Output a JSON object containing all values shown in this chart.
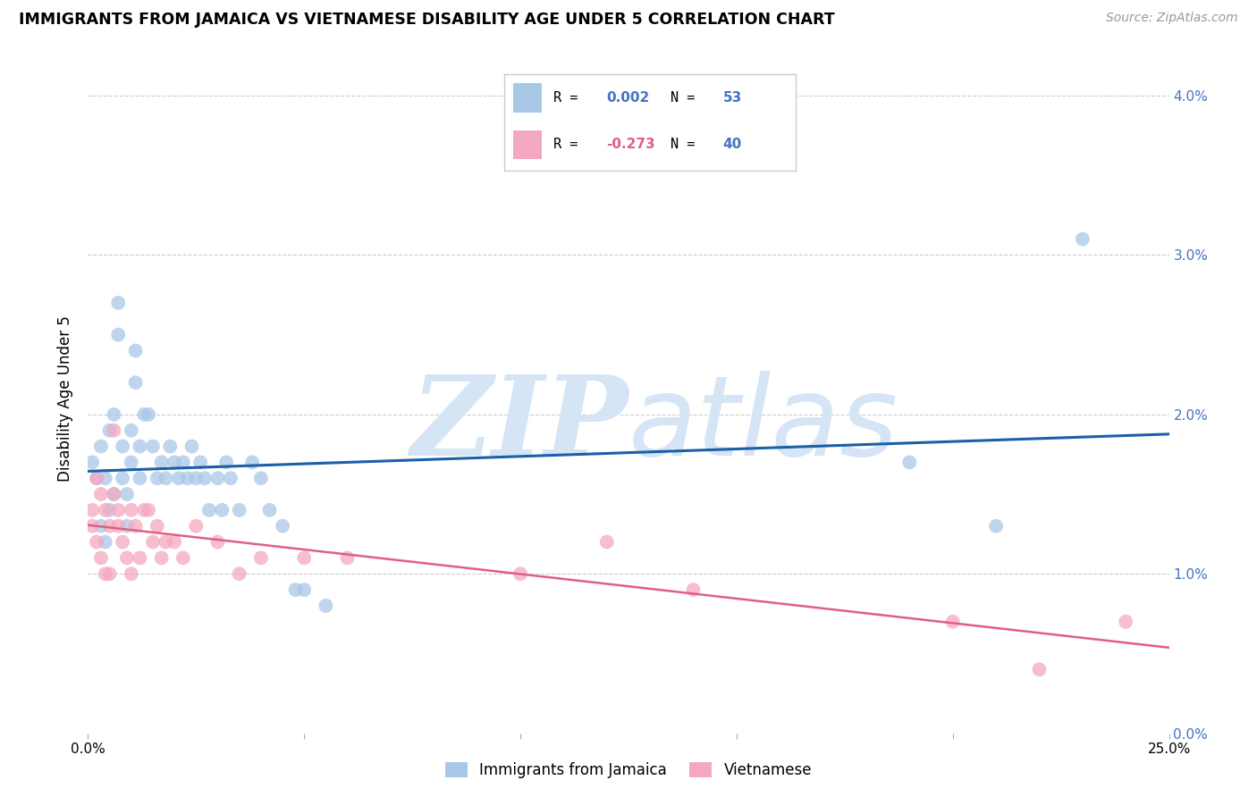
{
  "title": "IMMIGRANTS FROM JAMAICA VS VIETNAMESE DISABILITY AGE UNDER 5 CORRELATION CHART",
  "source": "Source: ZipAtlas.com",
  "ylabel": "Disability Age Under 5",
  "legend_jamaica": "Immigrants from Jamaica",
  "legend_vietnamese": "Vietnamese",
  "color_jamaica": "#a8c8e8",
  "color_vietnamese": "#f4a8c0",
  "color_line_jamaica": "#1a5fa8",
  "color_line_vietnamese": "#e06080",
  "jamaica_x": [
    0.001,
    0.002,
    0.003,
    0.003,
    0.004,
    0.004,
    0.005,
    0.005,
    0.006,
    0.006,
    0.007,
    0.007,
    0.008,
    0.008,
    0.009,
    0.009,
    0.01,
    0.01,
    0.011,
    0.011,
    0.012,
    0.012,
    0.013,
    0.014,
    0.015,
    0.016,
    0.017,
    0.018,
    0.019,
    0.02,
    0.021,
    0.022,
    0.023,
    0.024,
    0.025,
    0.026,
    0.027,
    0.028,
    0.03,
    0.031,
    0.032,
    0.033,
    0.035,
    0.038,
    0.04,
    0.042,
    0.045,
    0.048,
    0.05,
    0.055,
    0.19,
    0.21,
    0.23
  ],
  "jamaica_y": [
    0.017,
    0.016,
    0.018,
    0.013,
    0.016,
    0.012,
    0.019,
    0.014,
    0.02,
    0.015,
    0.027,
    0.025,
    0.018,
    0.016,
    0.015,
    0.013,
    0.019,
    0.017,
    0.024,
    0.022,
    0.018,
    0.016,
    0.02,
    0.02,
    0.018,
    0.016,
    0.017,
    0.016,
    0.018,
    0.017,
    0.016,
    0.017,
    0.016,
    0.018,
    0.016,
    0.017,
    0.016,
    0.014,
    0.016,
    0.014,
    0.017,
    0.016,
    0.014,
    0.017,
    0.016,
    0.014,
    0.013,
    0.009,
    0.009,
    0.008,
    0.017,
    0.013,
    0.031
  ],
  "vietnamese_x": [
    0.001,
    0.001,
    0.002,
    0.002,
    0.003,
    0.003,
    0.004,
    0.004,
    0.005,
    0.005,
    0.006,
    0.006,
    0.007,
    0.007,
    0.008,
    0.009,
    0.01,
    0.01,
    0.011,
    0.012,
    0.013,
    0.014,
    0.015,
    0.016,
    0.017,
    0.018,
    0.02,
    0.022,
    0.025,
    0.03,
    0.035,
    0.04,
    0.05,
    0.06,
    0.1,
    0.12,
    0.14,
    0.2,
    0.22,
    0.24
  ],
  "vietnamese_y": [
    0.014,
    0.013,
    0.016,
    0.012,
    0.015,
    0.011,
    0.014,
    0.01,
    0.013,
    0.01,
    0.019,
    0.015,
    0.014,
    0.013,
    0.012,
    0.011,
    0.014,
    0.01,
    0.013,
    0.011,
    0.014,
    0.014,
    0.012,
    0.013,
    0.011,
    0.012,
    0.012,
    0.011,
    0.013,
    0.012,
    0.01,
    0.011,
    0.011,
    0.011,
    0.01,
    0.012,
    0.009,
    0.007,
    0.004,
    0.007
  ],
  "xlim": [
    0.0,
    0.25
  ],
  "ylim": [
    0.0,
    0.042
  ],
  "yticks": [
    0.0,
    0.01,
    0.02,
    0.03,
    0.04
  ],
  "ytick_labels": [
    "0.0%",
    "1.0%",
    "2.0%",
    "3.0%",
    "4.0%"
  ],
  "xticks": [
    0.0,
    0.05,
    0.1,
    0.15,
    0.2,
    0.25
  ],
  "xtick_labels": [
    "0.0%",
    "",
    "",
    "",
    "",
    "25.0%"
  ],
  "background_color": "#ffffff",
  "grid_color": "#cccccc",
  "watermark_zip": "ZIP",
  "watermark_atlas": "atlas",
  "watermark_color": "#d5e5f5"
}
